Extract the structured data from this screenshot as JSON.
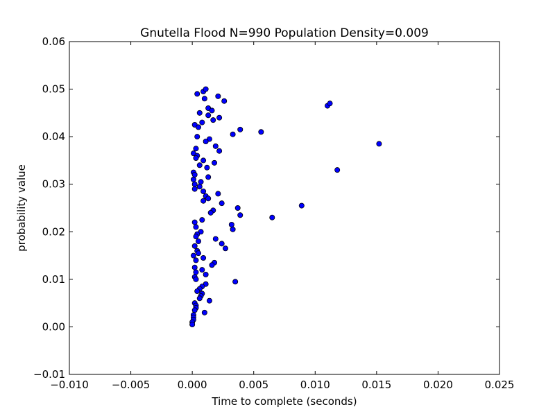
{
  "chart_data": {
    "type": "scatter",
    "title": "Gnutella Flood N=990 Population Density=0.009",
    "xlabel": "Time to complete (seconds)",
    "ylabel": "probability value",
    "xlim": [
      -0.01,
      0.025
    ],
    "ylim": [
      -0.01,
      0.06
    ],
    "xticks": [
      -0.01,
      -0.005,
      0.0,
      0.005,
      0.01,
      0.015,
      0.02,
      0.025
    ],
    "xtick_labels": [
      "−0.010",
      "−0.005",
      "0.000",
      "0.005",
      "0.010",
      "0.015",
      "0.020",
      "0.025"
    ],
    "yticks": [
      -0.01,
      0.0,
      0.01,
      0.02,
      0.03,
      0.04,
      0.05,
      0.06
    ],
    "ytick_labels": [
      "−0.01",
      "0.00",
      "0.01",
      "0.02",
      "0.03",
      "0.04",
      "0.05",
      "0.06"
    ],
    "grid": false,
    "marker_color": "#0000ff",
    "points": [
      {
        "x": 0.0004,
        "y": 0.049
      },
      {
        "x": 0.0009,
        "y": 0.0495
      },
      {
        "x": 0.0011,
        "y": 0.05
      },
      {
        "x": 0.0021,
        "y": 0.0485
      },
      {
        "x": 0.001,
        "y": 0.048
      },
      {
        "x": 0.0026,
        "y": 0.0475
      },
      {
        "x": 0.0013,
        "y": 0.046
      },
      {
        "x": 0.0016,
        "y": 0.0455
      },
      {
        "x": 0.0006,
        "y": 0.045
      },
      {
        "x": 0.0013,
        "y": 0.0445
      },
      {
        "x": 0.0022,
        "y": 0.044
      },
      {
        "x": 0.0017,
        "y": 0.0435
      },
      {
        "x": 0.0008,
        "y": 0.043
      },
      {
        "x": 0.0002,
        "y": 0.0425
      },
      {
        "x": 0.0005,
        "y": 0.042
      },
      {
        "x": 0.0039,
        "y": 0.0415
      },
      {
        "x": 0.0056,
        "y": 0.041
      },
      {
        "x": 0.0033,
        "y": 0.0405
      },
      {
        "x": 0.0004,
        "y": 0.04
      },
      {
        "x": 0.0014,
        "y": 0.0395
      },
      {
        "x": 0.0011,
        "y": 0.039
      },
      {
        "x": 0.0019,
        "y": 0.038
      },
      {
        "x": 0.0003,
        "y": 0.0375
      },
      {
        "x": 0.0022,
        "y": 0.037
      },
      {
        "x": 0.0001,
        "y": 0.0365
      },
      {
        "x": 0.0004,
        "y": 0.036
      },
      {
        "x": 0.0003,
        "y": 0.0355
      },
      {
        "x": 0.0009,
        "y": 0.035
      },
      {
        "x": 0.0018,
        "y": 0.0345
      },
      {
        "x": 0.0006,
        "y": 0.034
      },
      {
        "x": 0.0012,
        "y": 0.0335
      },
      {
        "x": 0.0001,
        "y": 0.0325
      },
      {
        "x": 0.0002,
        "y": 0.032
      },
      {
        "x": 0.0013,
        "y": 0.0315
      },
      {
        "x": 0.0001,
        "y": 0.031
      },
      {
        "x": 0.0007,
        "y": 0.0305
      },
      {
        "x": 0.0002,
        "y": 0.03
      },
      {
        "x": 0.0006,
        "y": 0.0295
      },
      {
        "x": 0.0002,
        "y": 0.029
      },
      {
        "x": 0.0009,
        "y": 0.0285
      },
      {
        "x": 0.0021,
        "y": 0.028
      },
      {
        "x": 0.0011,
        "y": 0.0275
      },
      {
        "x": 0.0013,
        "y": 0.027
      },
      {
        "x": 0.0009,
        "y": 0.0265
      },
      {
        "x": 0.0024,
        "y": 0.026
      },
      {
        "x": 0.0089,
        "y": 0.0255
      },
      {
        "x": 0.0037,
        "y": 0.025
      },
      {
        "x": 0.0017,
        "y": 0.0245
      },
      {
        "x": 0.0015,
        "y": 0.024
      },
      {
        "x": 0.0039,
        "y": 0.0235
      },
      {
        "x": 0.0065,
        "y": 0.023
      },
      {
        "x": 0.0008,
        "y": 0.0225
      },
      {
        "x": 0.0002,
        "y": 0.022
      },
      {
        "x": 0.0032,
        "y": 0.0215
      },
      {
        "x": 0.0003,
        "y": 0.021
      },
      {
        "x": 0.0033,
        "y": 0.0205
      },
      {
        "x": 0.0007,
        "y": 0.02
      },
      {
        "x": 0.0004,
        "y": 0.0195
      },
      {
        "x": 0.0003,
        "y": 0.019
      },
      {
        "x": 0.0019,
        "y": 0.0185
      },
      {
        "x": 0.0005,
        "y": 0.018
      },
      {
        "x": 0.0024,
        "y": 0.0175
      },
      {
        "x": 0.0002,
        "y": 0.017
      },
      {
        "x": 0.0027,
        "y": 0.0165
      },
      {
        "x": 0.0004,
        "y": 0.016
      },
      {
        "x": 0.0005,
        "y": 0.0155
      },
      {
        "x": 0.0001,
        "y": 0.015
      },
      {
        "x": 0.0009,
        "y": 0.0145
      },
      {
        "x": 0.0003,
        "y": 0.014
      },
      {
        "x": 0.0018,
        "y": 0.0135
      },
      {
        "x": 0.0016,
        "y": 0.013
      },
      {
        "x": 0.0002,
        "y": 0.0125
      },
      {
        "x": 0.0008,
        "y": 0.012
      },
      {
        "x": 0.0003,
        "y": 0.0115
      },
      {
        "x": 0.0011,
        "y": 0.011
      },
      {
        "x": 0.0002,
        "y": 0.0105
      },
      {
        "x": 0.0003,
        "y": 0.01
      },
      {
        "x": 0.0035,
        "y": 0.0095
      },
      {
        "x": 0.0011,
        "y": 0.009
      },
      {
        "x": 0.0008,
        "y": 0.0085
      },
      {
        "x": 0.0006,
        "y": 0.008
      },
      {
        "x": 0.0004,
        "y": 0.0075
      },
      {
        "x": 0.0008,
        "y": 0.007
      },
      {
        "x": 0.0007,
        "y": 0.0065
      },
      {
        "x": 0.0006,
        "y": 0.006
      },
      {
        "x": 0.0014,
        "y": 0.0055
      },
      {
        "x": 0.0002,
        "y": 0.005
      },
      {
        "x": 0.0003,
        "y": 0.0045
      },
      {
        "x": 0.0003,
        "y": 0.004
      },
      {
        "x": 0.0002,
        "y": 0.0035
      },
      {
        "x": 0.001,
        "y": 0.003
      },
      {
        "x": 0.0001,
        "y": 0.0025
      },
      {
        "x": 0.0001,
        "y": 0.002
      },
      {
        "x": 0.0001,
        "y": 0.0015
      },
      {
        "x": 0.0,
        "y": 0.001
      },
      {
        "x": 0.0,
        "y": 0.0005
      },
      {
        "x": 0.011,
        "y": 0.0465
      },
      {
        "x": 0.0112,
        "y": 0.047
      },
      {
        "x": 0.0152,
        "y": 0.0385
      },
      {
        "x": 0.0118,
        "y": 0.033
      }
    ]
  }
}
